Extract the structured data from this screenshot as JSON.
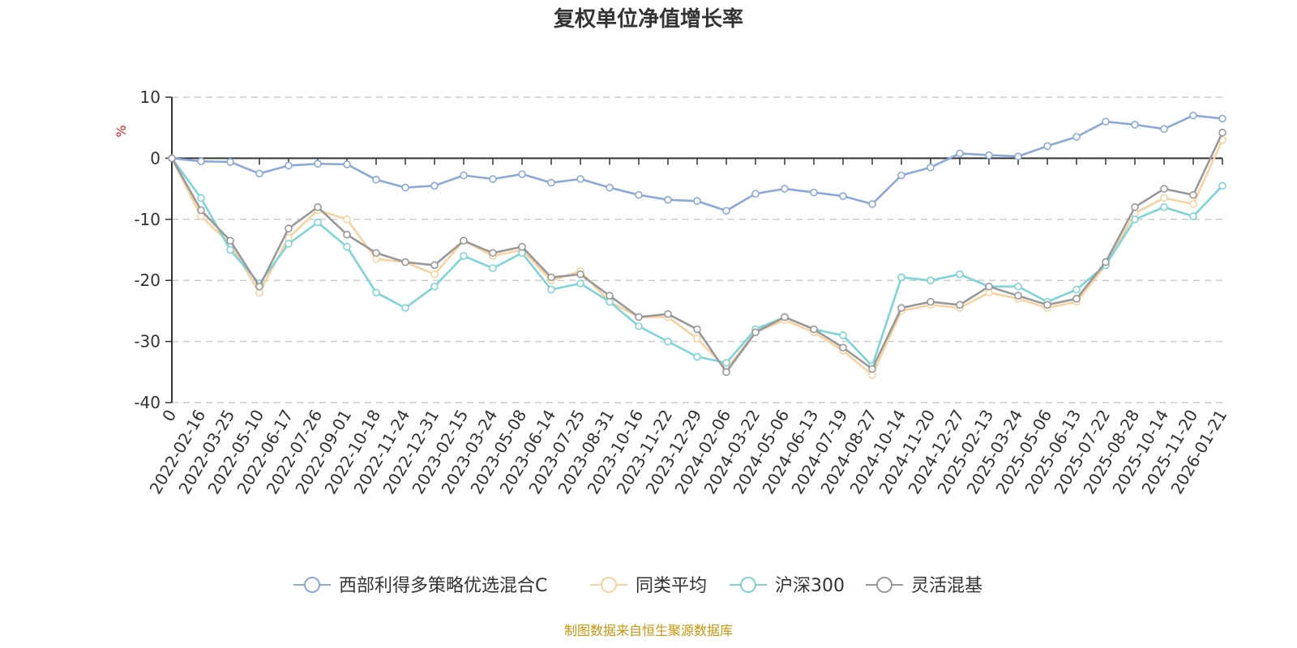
{
  "chart_data": {
    "type": "line",
    "title": "复权单位净值增长率",
    "ylabel": "%",
    "ylim": [
      -40,
      10
    ],
    "yticks": [
      "10",
      "0",
      "-10",
      "-20",
      "-30",
      "-40"
    ],
    "ytick_values": [
      10,
      0,
      -10,
      -20,
      -30,
      -40
    ],
    "grid": true,
    "categories": [
      "0",
      "2022-02-16",
      "2022-03-25",
      "2022-05-10",
      "2022-06-17",
      "2022-07-26",
      "2022-09-01",
      "2022-10-18",
      "2022-11-24",
      "2022-12-31",
      "2023-02-15",
      "2023-03-24",
      "2023-05-08",
      "2023-06-14",
      "2023-07-25",
      "2023-08-31",
      "2023-10-16",
      "2023-11-22",
      "2023-12-29",
      "2024-02-06",
      "2024-03-22",
      "2024-05-06",
      "2024-06-13",
      "2024-07-19",
      "2024-08-27",
      "2024-10-14",
      "2024-11-20",
      "2024-12-27",
      "2025-02-13",
      "2025-03-24",
      "2025-05-06",
      "2025-06-13",
      "2025-07-22",
      "2025-08-28",
      "2025-10-14",
      "2025-11-20",
      "2026-01-21"
    ],
    "series": [
      {
        "name": "西部利得多策略优选混合C",
        "color": "#8aa8d8",
        "values": [
          0,
          -0.5,
          -0.6,
          -2.5,
          -1.2,
          -0.9,
          -1.0,
          -3.5,
          -4.8,
          -4.5,
          -2.8,
          -3.4,
          -2.6,
          -4.0,
          -3.4,
          -4.8,
          -6.0,
          -6.8,
          -7.0,
          -8.6,
          -5.8,
          -5.0,
          -5.6,
          -6.2,
          -7.5,
          -2.8,
          -1.5,
          0.8,
          0.5,
          0.3,
          2.0,
          3.5,
          6.0,
          5.5,
          4.8,
          7.0,
          6.5
        ]
      },
      {
        "name": "同类平均",
        "color": "#f8d3a0",
        "values": [
          0,
          -9.5,
          -14.0,
          -22.0,
          -13.0,
          -8.5,
          -10.0,
          -16.5,
          -17.0,
          -19.0,
          -13.5,
          -16.0,
          -15.0,
          -20.0,
          -18.5,
          -23.5,
          -26.0,
          -26.0,
          -29.5,
          -34.5,
          -28.5,
          -26.5,
          -28.5,
          -31.5,
          -35.5,
          -25.0,
          -24.0,
          -24.5,
          -22.0,
          -23.0,
          -24.5,
          -23.5,
          -17.5,
          -9.0,
          -6.5,
          -7.5,
          3.0
        ]
      },
      {
        "name": "沪深300",
        "color": "#7dd4d9",
        "values": [
          0,
          -6.5,
          -15.0,
          -20.5,
          -14.0,
          -10.5,
          -14.5,
          -22.0,
          -24.5,
          -21.0,
          -16.0,
          -18.0,
          -15.5,
          -21.5,
          -20.5,
          -23.5,
          -27.5,
          -30.0,
          -32.5,
          -33.5,
          -28.0,
          -26.0,
          -28.0,
          -29.0,
          -34.0,
          -19.5,
          -20.0,
          -19.0,
          -21.0,
          -21.0,
          -23.5,
          -21.5,
          -17.5,
          -10.0,
          -8.0,
          -9.5,
          -4.5
        ]
      },
      {
        "name": "灵活混基",
        "color": "#999999",
        "values": [
          0,
          -8.5,
          -13.5,
          -21.0,
          -11.5,
          -8.0,
          -12.5,
          -15.5,
          -17.0,
          -17.5,
          -13.5,
          -15.5,
          -14.5,
          -19.5,
          -19.0,
          -22.5,
          -26.0,
          -25.5,
          -28.0,
          -35.0,
          -28.5,
          -26.0,
          -28.0,
          -31.0,
          -34.5,
          -24.5,
          -23.5,
          -24.0,
          -21.0,
          -22.5,
          -24.0,
          -23.0,
          -17.0,
          -8.0,
          -5.0,
          -6.0,
          4.2
        ]
      }
    ],
    "legend_position": "bottom"
  },
  "footer": {
    "source": "制图数据来自恒生聚源数据库",
    "source_color": "#c8960c"
  },
  "unit_color": "#e02020",
  "axis_color": "#333333",
  "grid_color": "#cccccc"
}
